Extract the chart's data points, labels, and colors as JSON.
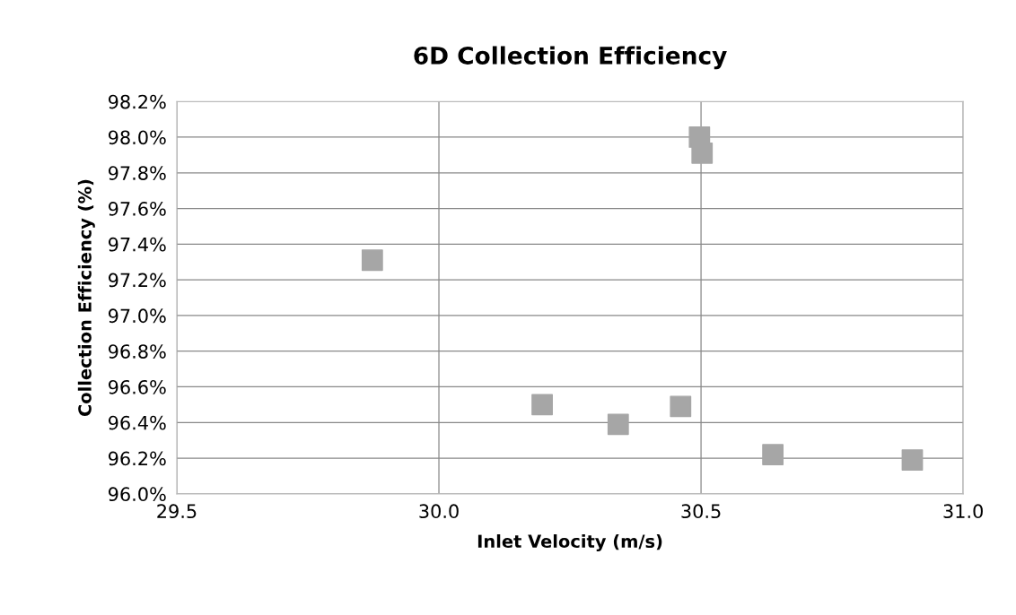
{
  "chart_data": {
    "type": "scatter",
    "title": "6D Collection Efficiency",
    "xlabel": "Inlet Velocity (m/s)",
    "ylabel": "Collection Efficiency (%)",
    "x": [
      29.873,
      30.497,
      30.502,
      30.197,
      30.342,
      30.461,
      30.637,
      30.903
    ],
    "series": [
      {
        "color": "#a6a6a6",
        "values": [
          97.31,
          98.0,
          97.91,
          96.5,
          96.39,
          96.49,
          96.22,
          96.19
        ]
      }
    ],
    "marker": "square",
    "grid": true,
    "xlim": [
      29.5,
      31.0
    ],
    "xticks": [
      {
        "value": 29.5,
        "label": "29.5"
      },
      {
        "value": 30.0,
        "label": "30.0"
      },
      {
        "value": 30.5,
        "label": "30.5"
      },
      {
        "value": 31.0,
        "label": "31.0"
      }
    ],
    "ylim": [
      96.0,
      98.2
    ],
    "yticks": [
      {
        "value": 96.0,
        "label": "96.0%"
      },
      {
        "value": 96.2,
        "label": "96.2%"
      },
      {
        "value": 96.4,
        "label": "96.4%"
      },
      {
        "value": 96.6,
        "label": "96.6%"
      },
      {
        "value": 96.8,
        "label": "96.8%"
      },
      {
        "value": 97.0,
        "label": "97.0%"
      },
      {
        "value": 97.2,
        "label": "97.2%"
      },
      {
        "value": 97.4,
        "label": "97.4%"
      },
      {
        "value": 97.6,
        "label": "97.6%"
      },
      {
        "value": 97.8,
        "label": "97.8%"
      },
      {
        "value": 98.0,
        "label": "98.0%"
      },
      {
        "value": 98.2,
        "label": "98.2%"
      }
    ]
  }
}
